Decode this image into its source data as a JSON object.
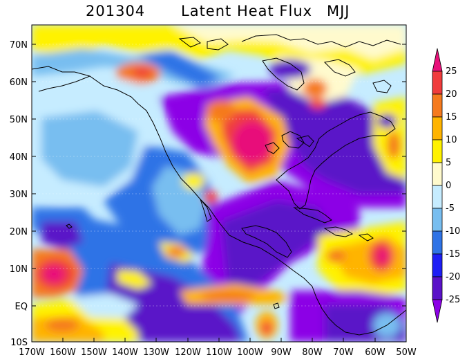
{
  "title": {
    "date": "201304",
    "variable": "Latent Heat Flux",
    "season": "MJJ"
  },
  "map": {
    "lat_ticks": [
      "70N",
      "60N",
      "50N",
      "40N",
      "30N",
      "20N",
      "10N",
      "EQ",
      "10S"
    ],
    "lon_ticks": [
      "170W",
      "160W",
      "150W",
      "140W",
      "130W",
      "120W",
      "110W",
      "100W",
      "90W",
      "80W",
      "70W",
      "60W",
      "50W"
    ],
    "lat_range": [
      -10,
      75
    ],
    "lon_range": [
      -170,
      -50
    ]
  },
  "colorbar": {
    "labels": [
      "25",
      "20",
      "15",
      "10",
      "5",
      "0",
      "-5",
      "-10",
      "-15",
      "-20",
      "-25"
    ],
    "colors": [
      "#e8107a",
      "#f03c3c",
      "#f57a1e",
      "#ffb400",
      "#fff200",
      "#fffacd",
      "#c6ecff",
      "#78bef0",
      "#2f73e6",
      "#1e1ef5",
      "#5a12c8",
      "#8c00e6"
    ]
  }
}
